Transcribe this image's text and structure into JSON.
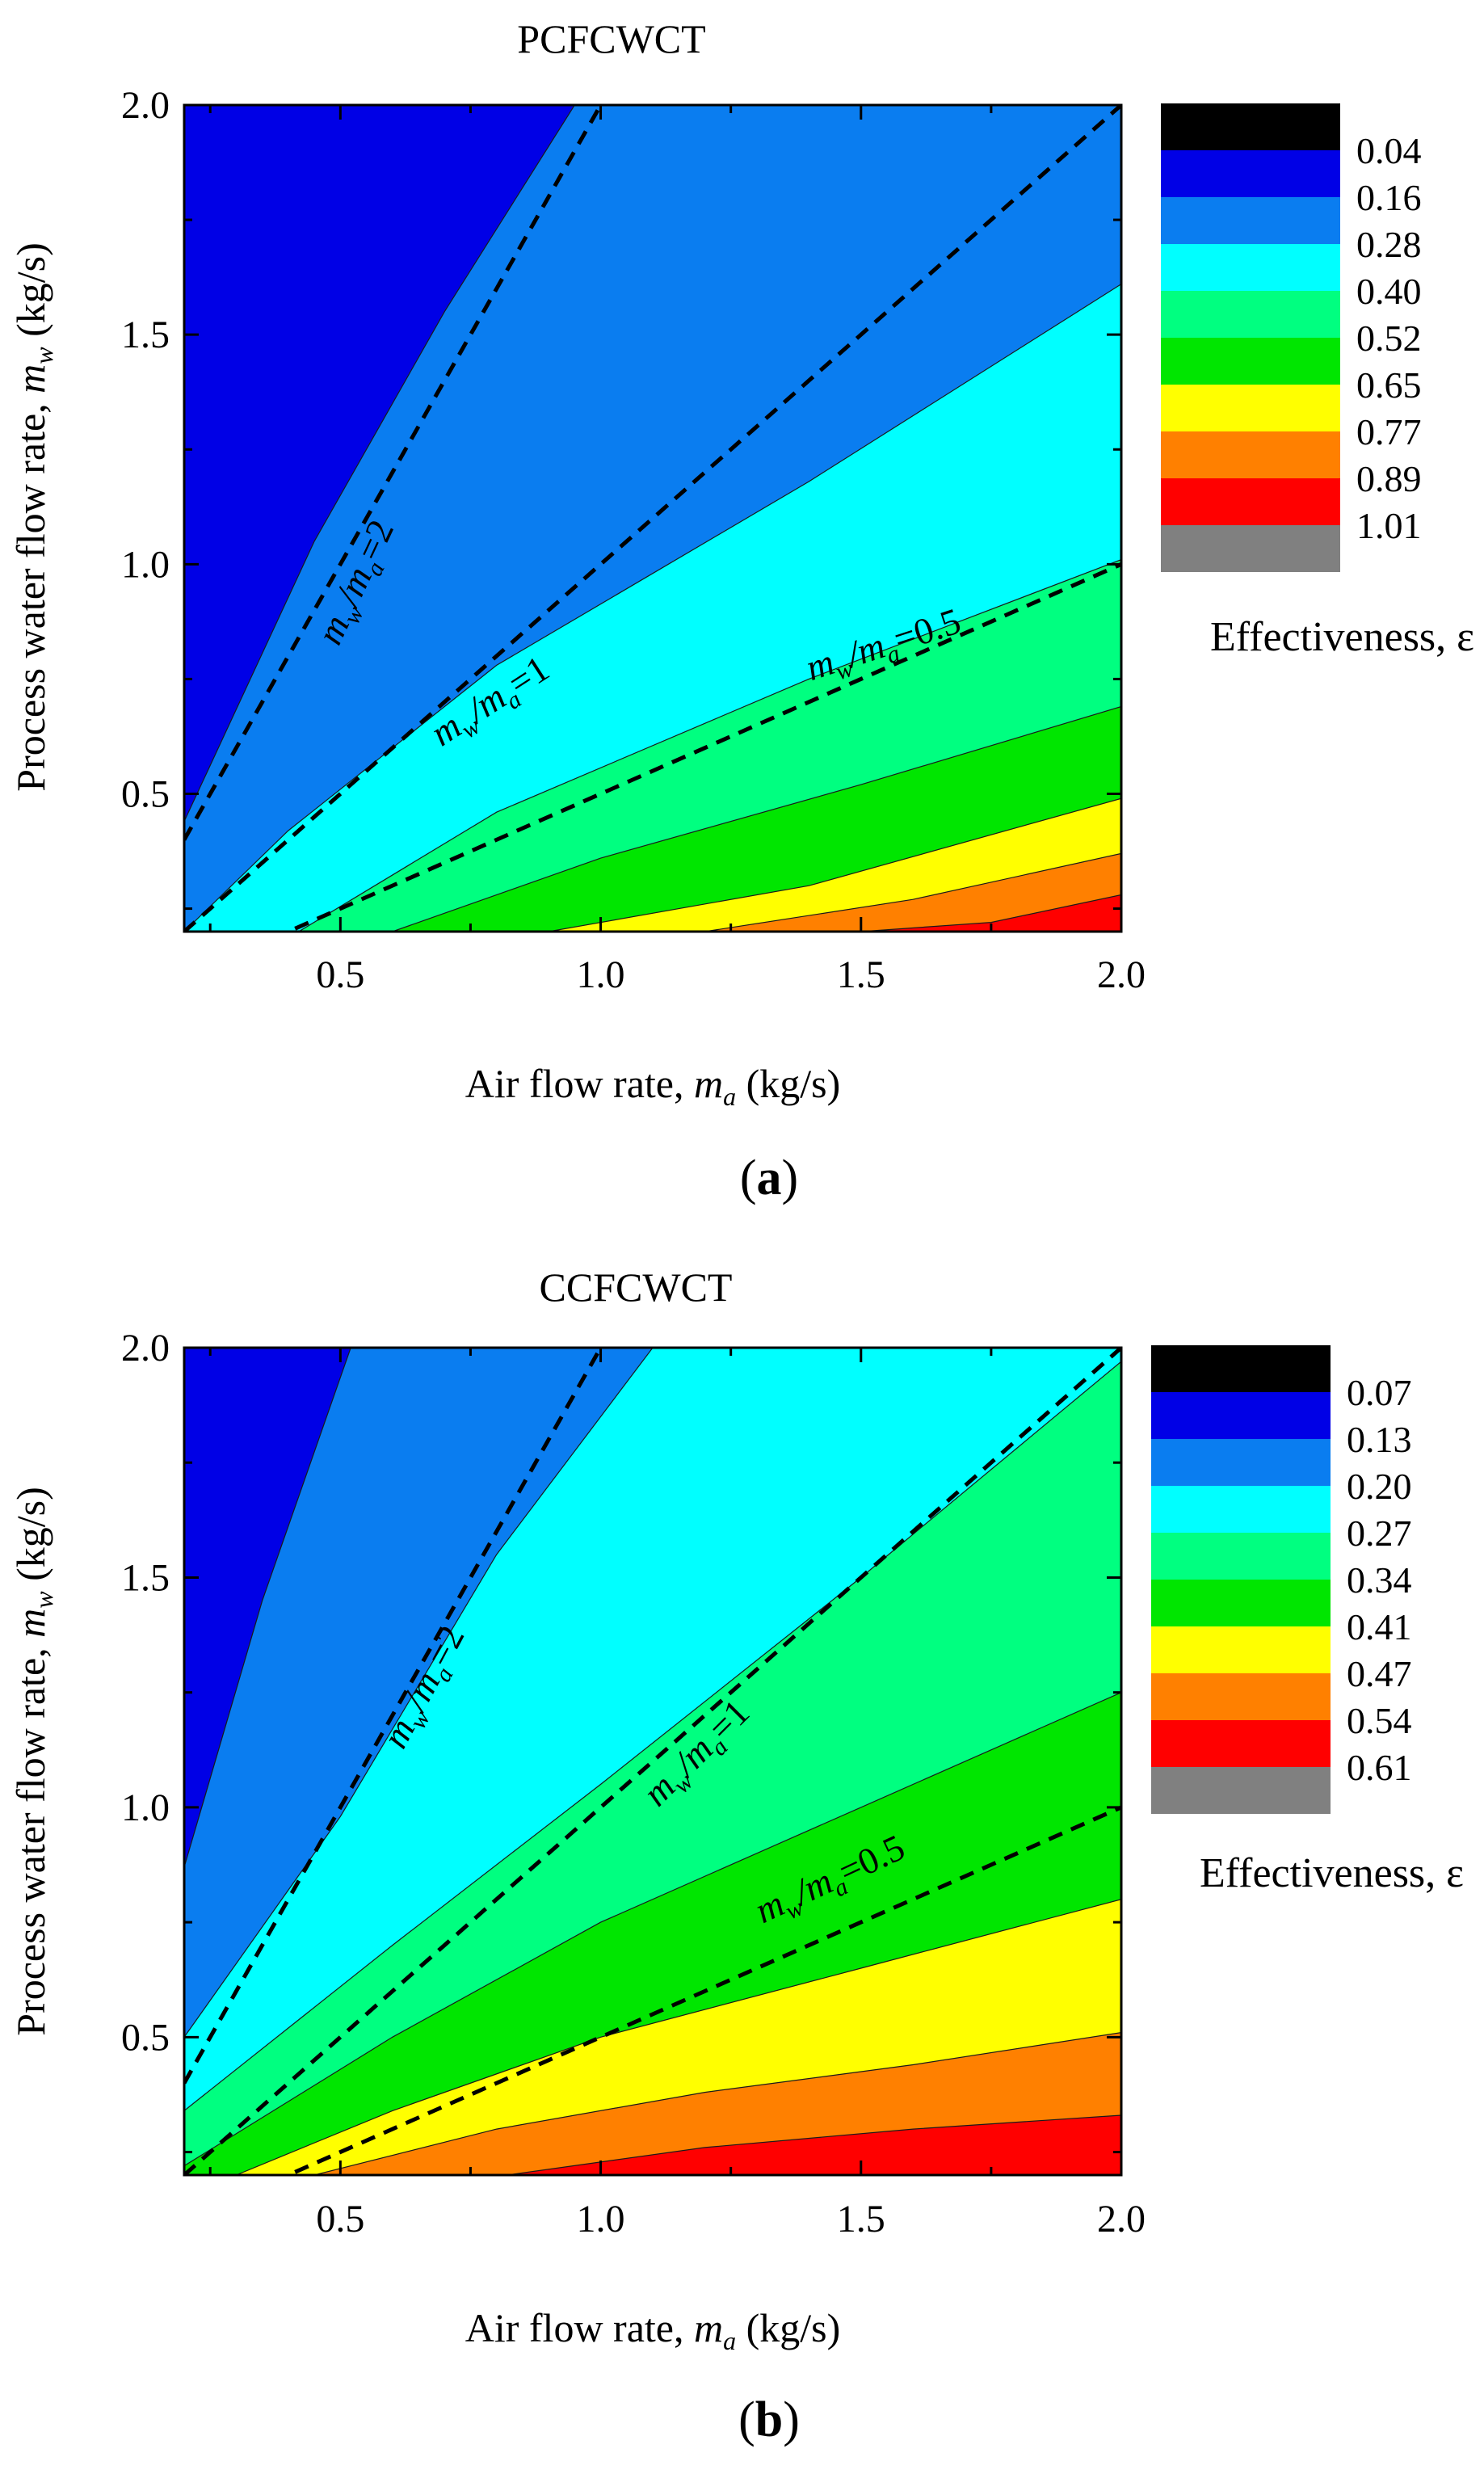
{
  "chart_data": [
    {
      "type": "contour",
      "panel_label": "(a)",
      "title": "PCFCWCT",
      "xlabel": "Air flow rate, m_a (kg/s)",
      "ylabel": "Process water flow rate, m_w (kg/s)",
      "xlim": [
        0.2,
        2.0
      ],
      "ylim": [
        0.2,
        2.0
      ],
      "xticks": [
        0.5,
        1.0,
        1.5,
        2.0
      ],
      "yticks": [
        0.5,
        1.0,
        1.5,
        2.0
      ],
      "tick_labels_x": [
        "0.5",
        "1.0",
        "1.5",
        "2.0"
      ],
      "tick_labels_y": [
        "0.5",
        "1.0",
        "1.5",
        "2.0"
      ],
      "colorbar_title": "Effectiveness, ε",
      "colorbar_levels": [
        "0.04",
        "0.16",
        "0.28",
        "0.40",
        "0.52",
        "0.65",
        "0.77",
        "0.89",
        "1.01"
      ],
      "colorbar_colors": [
        "#000000",
        "#0000e6",
        "#0a7df0",
        "#00ffff",
        "#00ff80",
        "#00e600",
        "#ffff00",
        "#ff8000",
        "#ff0000",
        "#808080"
      ],
      "region_colors": [
        "#0000e6",
        "#0a7df0",
        "#00ffff",
        "#00ff80",
        "#00e600",
        "#ffff00",
        "#ff8000",
        "#ff0000"
      ],
      "boundaries": [
        [
          [
            0.2,
            0.44
          ],
          [
            0.45,
            1.05
          ],
          [
            0.7,
            1.55
          ],
          [
            0.95,
            2.0
          ]
        ],
        [
          [
            0.2,
            0.2
          ],
          [
            0.4,
            0.42
          ],
          [
            0.8,
            0.78
          ],
          [
            1.4,
            1.18
          ],
          [
            2.0,
            1.61
          ]
        ],
        [
          [
            0.42,
            0.2
          ],
          [
            0.8,
            0.46
          ],
          [
            1.4,
            0.75
          ],
          [
            2.0,
            1.01
          ]
        ],
        [
          [
            0.6,
            0.2
          ],
          [
            1.0,
            0.36
          ],
          [
            1.5,
            0.52
          ],
          [
            2.0,
            0.69
          ]
        ],
        [
          [
            0.9,
            0.2
          ],
          [
            1.4,
            0.3
          ],
          [
            2.0,
            0.49
          ]
        ],
        [
          [
            1.2,
            0.2
          ],
          [
            1.6,
            0.27
          ],
          [
            2.0,
            0.37
          ]
        ],
        [
          [
            1.5,
            0.2
          ],
          [
            1.75,
            0.22
          ],
          [
            2.0,
            0.28
          ]
        ]
      ],
      "ratio_lines": [
        {
          "label_main": "m",
          "label_sub1": "w",
          "label_mid": "/m",
          "label_sub2": "a",
          "label_tail": "=2",
          "slope": 2,
          "angle": -65,
          "label_at": [
            0.55,
            0.95
          ]
        },
        {
          "label_main": "m",
          "label_sub1": "w",
          "label_mid": "/m",
          "label_sub2": "a",
          "label_tail": "=1",
          "slope": 1,
          "angle": -33,
          "label_at": [
            0.8,
            0.68
          ]
        },
        {
          "label_main": "m",
          "label_sub1": "w",
          "label_mid": "/m",
          "label_sub2": "a",
          "label_tail": "=0.5",
          "slope": 0.5,
          "angle": -18,
          "label_at": [
            1.55,
            0.8
          ]
        }
      ]
    },
    {
      "type": "contour",
      "panel_label": "(b)",
      "title": "CCFCWCT",
      "xlabel": "Air flow rate, m_a (kg/s)",
      "ylabel": "Process water flow rate, m_w (kg/s)",
      "xlim": [
        0.2,
        2.0
      ],
      "ylim": [
        0.2,
        2.0
      ],
      "xticks": [
        0.5,
        1.0,
        1.5,
        2.0
      ],
      "yticks": [
        0.5,
        1.0,
        1.5,
        2.0
      ],
      "tick_labels_x": [
        "0.5",
        "1.0",
        "1.5",
        "2.0"
      ],
      "tick_labels_y": [
        "0.5",
        "1.0",
        "1.5",
        "2.0"
      ],
      "colorbar_title": "Effectiveness, ε",
      "colorbar_levels": [
        "0.07",
        "0.13",
        "0.20",
        "0.27",
        "0.34",
        "0.41",
        "0.47",
        "0.54",
        "0.61"
      ],
      "colorbar_colors": [
        "#000000",
        "#0000e6",
        "#0a7df0",
        "#00ffff",
        "#00ff80",
        "#00e600",
        "#ffff00",
        "#ff8000",
        "#ff0000",
        "#808080"
      ],
      "region_colors": [
        "#0000e6",
        "#0a7df0",
        "#00ffff",
        "#00ff80",
        "#00e600",
        "#ffff00",
        "#ff8000",
        "#ff0000"
      ],
      "boundaries": [
        [
          [
            0.2,
            0.87
          ],
          [
            0.35,
            1.45
          ],
          [
            0.52,
            2.0
          ]
        ],
        [
          [
            0.2,
            0.5
          ],
          [
            0.5,
            0.98
          ],
          [
            0.8,
            1.55
          ],
          [
            1.1,
            2.0
          ]
        ],
        [
          [
            0.2,
            0.34
          ],
          [
            0.6,
            0.7
          ],
          [
            1.0,
            1.05
          ],
          [
            1.5,
            1.5
          ],
          [
            2.0,
            1.97
          ]
        ],
        [
          [
            0.2,
            0.22
          ],
          [
            0.6,
            0.5
          ],
          [
            1.0,
            0.75
          ],
          [
            1.5,
            1.0
          ],
          [
            2.0,
            1.25
          ]
        ],
        [
          [
            0.3,
            0.2
          ],
          [
            0.6,
            0.34
          ],
          [
            1.0,
            0.5
          ],
          [
            1.5,
            0.65
          ],
          [
            2.0,
            0.8
          ]
        ],
        [
          [
            0.45,
            0.2
          ],
          [
            0.8,
            0.3
          ],
          [
            1.2,
            0.38
          ],
          [
            1.6,
            0.44
          ],
          [
            2.0,
            0.51
          ]
        ],
        [
          [
            0.82,
            0.2
          ],
          [
            1.2,
            0.26
          ],
          [
            1.6,
            0.3
          ],
          [
            2.0,
            0.33
          ]
        ]
      ],
      "ratio_lines": [
        {
          "label_main": "m",
          "label_sub1": "w",
          "label_mid": "/m",
          "label_sub2": "a",
          "label_tail": "=2",
          "slope": 2,
          "angle": -62,
          "label_at": [
            0.68,
            1.25
          ]
        },
        {
          "label_main": "m",
          "label_sub1": "w",
          "label_mid": "/m",
          "label_sub2": "a",
          "label_tail": "=1",
          "slope": 1,
          "angle": -45,
          "label_at": [
            1.2,
            1.1
          ]
        },
        {
          "label_main": "m",
          "label_sub1": "w",
          "label_mid": "/m",
          "label_sub2": "a",
          "label_tail": "=0.5",
          "slope": 0.5,
          "angle": -25,
          "label_at": [
            1.45,
            0.82
          ]
        }
      ]
    }
  ]
}
